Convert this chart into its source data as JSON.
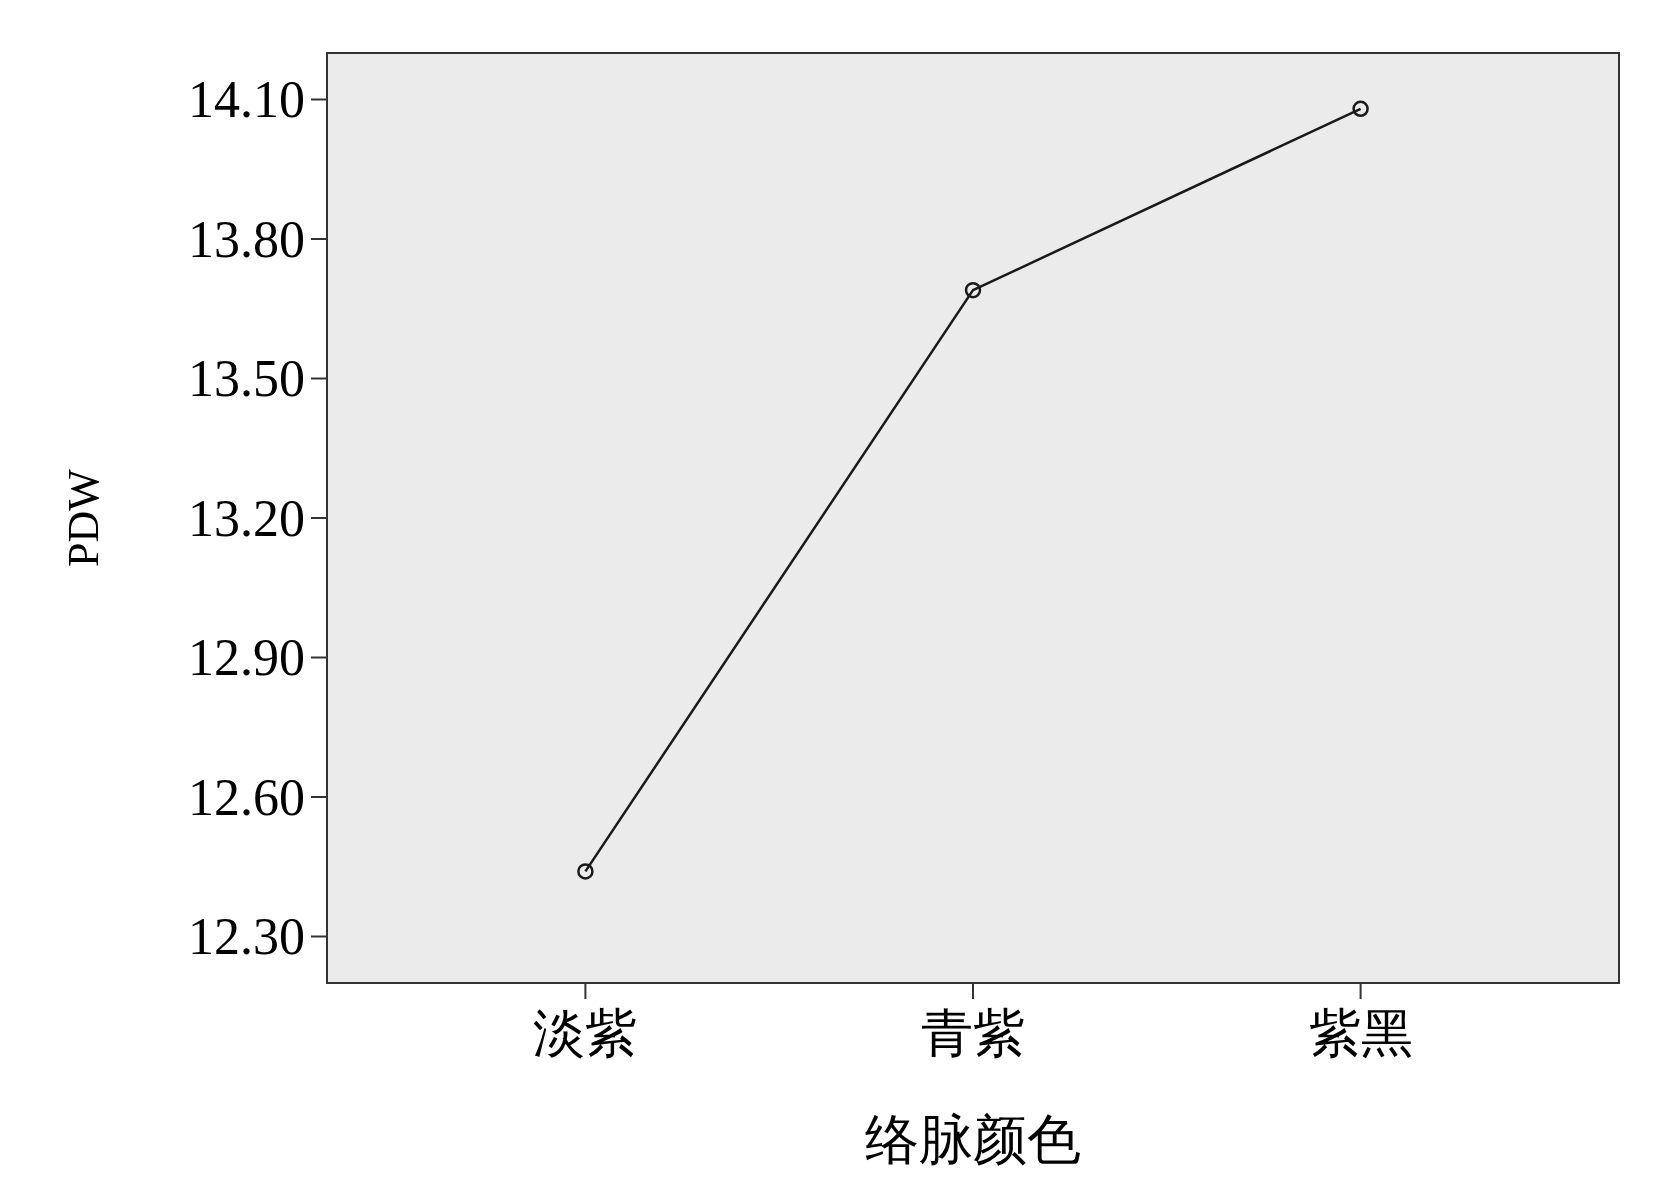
{
  "chart_data": {
    "type": "line",
    "xlabel": "络脉颜色",
    "ylabel": "PDW",
    "categories": [
      "淡紫",
      "青紫",
      "紫黑"
    ],
    "series": [
      {
        "color": "#1a1a1a",
        "values": [
          12.44,
          13.69,
          14.08
        ]
      }
    ],
    "ylim": [
      12.2,
      14.2
    ],
    "yticks": [
      {
        "value": 12.3,
        "label": "12.30"
      },
      {
        "value": 12.6,
        "label": "12.60"
      },
      {
        "value": 12.9,
        "label": "12.90"
      },
      {
        "value": 13.2,
        "label": "13.20"
      },
      {
        "value": 13.5,
        "label": "13.50"
      },
      {
        "value": 13.8,
        "label": "13.80"
      },
      {
        "value": 14.1,
        "label": "14.10"
      }
    ],
    "marker": "circle",
    "line_style": "solid"
  }
}
